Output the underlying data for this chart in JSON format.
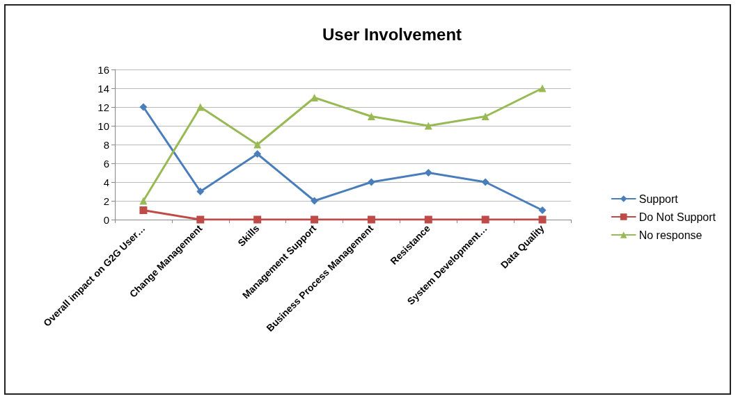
{
  "chart_data": {
    "type": "line",
    "title": "User Involvement",
    "categories": [
      "Overall impact on G2G User…",
      "Change Management",
      "Skills",
      "Management Support",
      "Business Process Management",
      "Resistance",
      "System Development…",
      "Data Quality"
    ],
    "series": [
      {
        "name": "Support",
        "color": "#4a7ebb",
        "marker": "diamond",
        "values": [
          12,
          3,
          7,
          2,
          4,
          5,
          4,
          1
        ]
      },
      {
        "name": "Do Not Support",
        "color": "#be4b48",
        "marker": "square",
        "values": [
          1,
          0,
          0,
          0,
          0,
          0,
          0,
          0
        ]
      },
      {
        "name": "No response",
        "color": "#98b954",
        "marker": "triangle",
        "values": [
          2,
          12,
          8,
          13,
          11,
          10,
          11,
          14
        ]
      }
    ],
    "ylim": [
      0,
      16
    ],
    "yticks": [
      0,
      2,
      4,
      6,
      8,
      10,
      12,
      14,
      16
    ],
    "grid": "y",
    "legend": "right",
    "line_style": "solid"
  }
}
